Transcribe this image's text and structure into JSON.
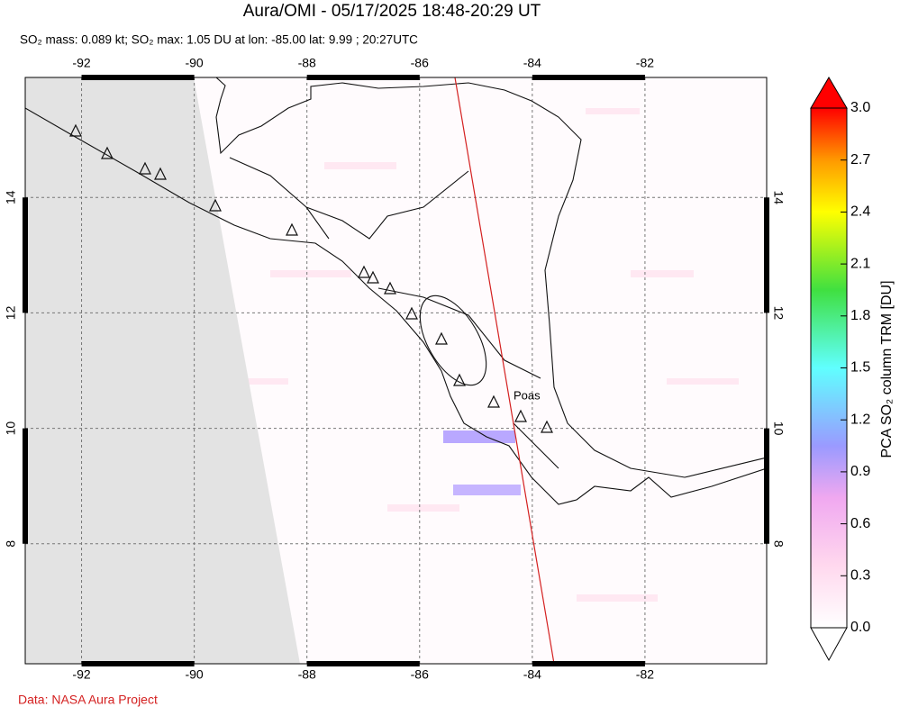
{
  "map": {
    "title": "Aura/OMI - 05/17/2025 18:48-20:29 UT",
    "subtitle": "SO₂ mass: 0.089 kt; SO₂ max: 1.05 DU at lon: -85.00 lat: 9.99 ; 20:27UTC",
    "xlim": [
      -93.0,
      -79.84
    ],
    "ylim": [
      5.92,
      16.08
    ],
    "xticks": [
      -92,
      -90,
      -88,
      -86,
      -84,
      -82
    ],
    "yticks": [
      8,
      10,
      12,
      14
    ],
    "grid": true,
    "volcano_label": "Poas",
    "colorbar": {
      "label": "PCA SO₂ column TRM [DU]",
      "lim": [
        0,
        3
      ],
      "ticks": [
        {
          "value": 0,
          "label": "0.0"
        },
        0.3,
        0.6,
        0.9,
        1.2,
        1.5,
        1.8,
        2.1,
        2.4,
        2.7,
        {
          "value": 3,
          "label": "3.0"
        }
      ]
    },
    "credit": "Data: NASA Aura Project"
  }
}
